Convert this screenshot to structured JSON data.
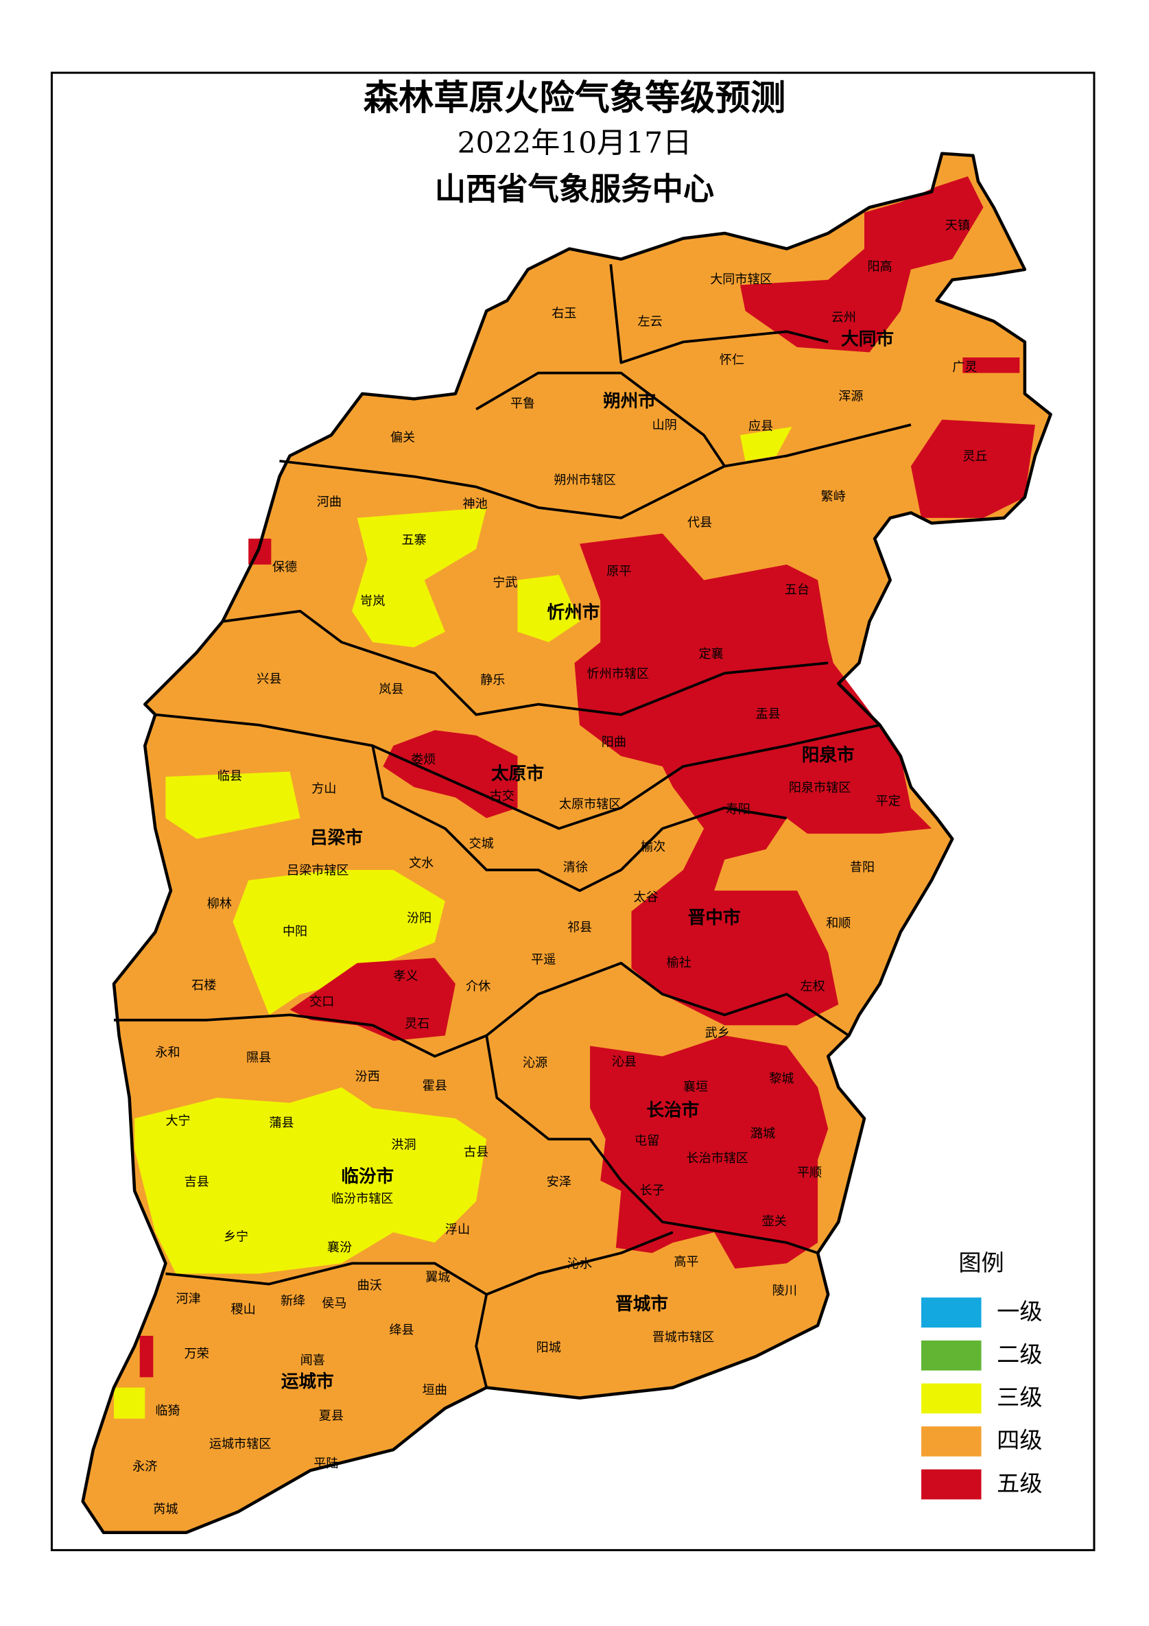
{
  "header": {
    "title": "森林草原火险气象等级预测",
    "date": "2022年10月17日",
    "issuer": "山西省气象服务中心"
  },
  "legend": {
    "title": "图例",
    "items": [
      {
        "label": "一级",
        "color": "#14a8e0"
      },
      {
        "label": "二级",
        "color": "#62b532"
      },
      {
        "label": "三级",
        "color": "#eef500"
      },
      {
        "label": "四级",
        "color": "#f4a030"
      },
      {
        "label": "五级",
        "color": "#cf0a1e"
      }
    ]
  },
  "map": {
    "cities": [
      "大同市",
      "朔州市",
      "忻州市",
      "太原市",
      "阳泉市",
      "吕梁市",
      "晋中市",
      "长治市",
      "临汾市",
      "晋城市",
      "运城市"
    ],
    "counties": [
      "天镇",
      "阳高",
      "大同市辖区",
      "云州",
      "右玉",
      "左云",
      "怀仁",
      "广灵",
      "浑源",
      "平鲁",
      "山阴",
      "应县",
      "灵丘",
      "偏关",
      "朔州市辖区",
      "繁峙",
      "河曲",
      "神池",
      "代县",
      "五寨",
      "保德",
      "原平",
      "五台",
      "宁武",
      "岢岚",
      "定襄",
      "兴县",
      "岚县",
      "静乐",
      "忻州市辖区",
      "盂县",
      "娄烦",
      "阳曲",
      "临县",
      "方山",
      "古交",
      "太原市辖区",
      "寿阳",
      "阳泉市辖区",
      "平定",
      "交城",
      "文水",
      "吕梁市辖区",
      "清徐",
      "榆次",
      "昔阳",
      "柳林",
      "太谷",
      "汾阳",
      "中阳",
      "祁县",
      "和顺",
      "孝义",
      "平遥",
      "介休",
      "榆社",
      "左权",
      "石楼",
      "交口",
      "灵石",
      "武乡",
      "永和",
      "隰县",
      "汾西",
      "沁源",
      "沁县",
      "襄垣",
      "黎城",
      "霍县",
      "大宁",
      "蒲县",
      "潞城",
      "屯留",
      "洪洞",
      "古县",
      "长治市辖区",
      "吉县",
      "安泽",
      "平顺",
      "长子",
      "壶关",
      "襄汾",
      "乡宁",
      "浮山",
      "临汾市辖区",
      "高平",
      "陵川",
      "沁水",
      "曲沃",
      "翼城",
      "河津",
      "稷山",
      "新绛",
      "侯马",
      "绛县",
      "阳城",
      "晋城市辖区",
      "万荣",
      "闻喜",
      "垣曲",
      "临猗",
      "夏县",
      "运城市辖区",
      "平陆",
      "永济",
      "芮城"
    ]
  }
}
